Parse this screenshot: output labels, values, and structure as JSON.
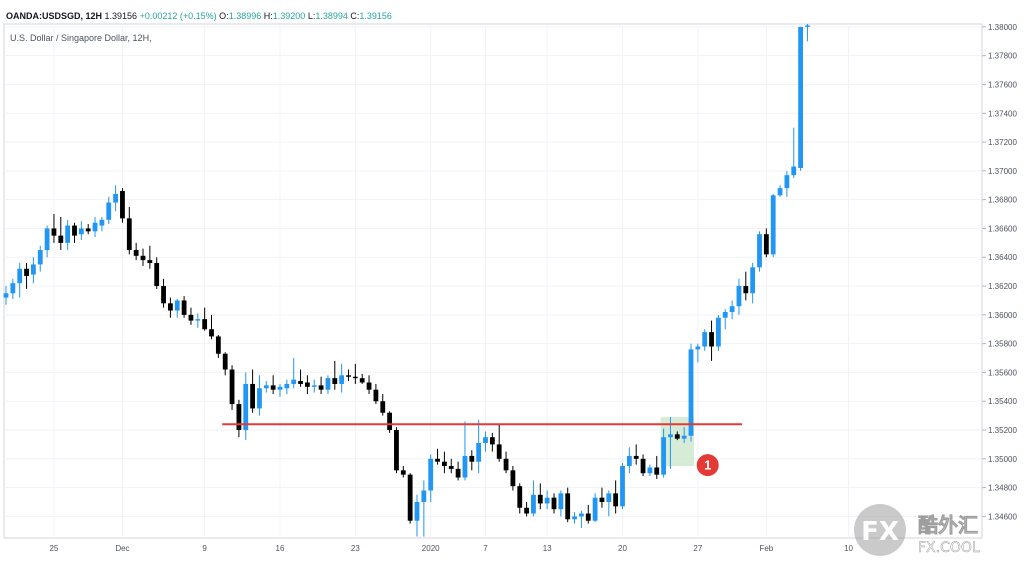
{
  "header": {
    "symbol": "OANDA:USDSGD, 12H",
    "last": "1.39156",
    "change": "+0.00212 (+0.15%)",
    "open_label": "O:",
    "open": "1.38996",
    "high_label": "H:",
    "high": "1.39200",
    "low_label": "L:",
    "low": "1.38994",
    "close_label": "C:",
    "close": "1.39156"
  },
  "instrument_title": "U.S. Dollar / Singapore Dollar, 12H,",
  "marker": {
    "label": "1"
  },
  "watermark": {
    "logo": "FX",
    "brand": "酷外汇",
    "url": "FX.COOL"
  },
  "colors": {
    "up": "#2196f3",
    "down": "#000000",
    "resistance": "#e53935",
    "highlight": "#c8e6c9",
    "marker": "#e53935"
  },
  "chart_data": {
    "type": "candlestick",
    "title": "U.S. Dollar / Singapore Dollar, 12H,",
    "ylim": [
      1.3445,
      1.3802
    ],
    "yticks": [
      "1.38000",
      "1.37800",
      "1.37600",
      "1.37400",
      "1.37200",
      "1.37000",
      "1.36800",
      "1.36600",
      "1.36400",
      "1.36200",
      "1.36000",
      "1.35800",
      "1.35600",
      "1.35400",
      "1.35200",
      "1.35000",
      "1.34800",
      "1.34600"
    ],
    "xticks": [
      {
        "i": 7,
        "label": "25"
      },
      {
        "i": 17,
        "label": "Dec"
      },
      {
        "i": 29,
        "label": "9"
      },
      {
        "i": 40,
        "label": "16"
      },
      {
        "i": 51,
        "label": "23"
      },
      {
        "i": 62,
        "label": "2020"
      },
      {
        "i": 70,
        "label": "7"
      },
      {
        "i": 79,
        "label": "13"
      },
      {
        "i": 90,
        "label": "20"
      },
      {
        "i": 101,
        "label": "27"
      },
      {
        "i": 111,
        "label": "Feb"
      },
      {
        "i": 123,
        "label": "10"
      }
    ],
    "resistance_level": 1.3524,
    "resistance_range": [
      32,
      107
    ],
    "highlight": {
      "i0": 96,
      "i1": 100,
      "low": 1.3495,
      "high": 1.3529
    },
    "marker_index": 102,
    "marker_price": 1.3497,
    "candles": [
      [
        1.3612,
        1.362,
        1.3607,
        1.3615
      ],
      [
        1.3615,
        1.3625,
        1.3611,
        1.3622
      ],
      [
        1.3622,
        1.3636,
        1.3612,
        1.3632
      ],
      [
        1.3632,
        1.3636,
        1.3618,
        1.3627
      ],
      [
        1.3628,
        1.364,
        1.3622,
        1.3635
      ],
      [
        1.3635,
        1.3648,
        1.363,
        1.3645
      ],
      [
        1.3645,
        1.3662,
        1.364,
        1.366
      ],
      [
        1.366,
        1.367,
        1.365,
        1.3655
      ],
      [
        1.3655,
        1.3668,
        1.3645,
        1.365
      ],
      [
        1.365,
        1.3666,
        1.3645,
        1.3662
      ],
      [
        1.3662,
        1.3664,
        1.365,
        1.3655
      ],
      [
        1.3656,
        1.3665,
        1.3652,
        1.366
      ],
      [
        1.366,
        1.3663,
        1.3656,
        1.3658
      ],
      [
        1.3658,
        1.3668,
        1.3654,
        1.3664
      ],
      [
        1.3662,
        1.3668,
        1.3658,
        1.3666
      ],
      [
        1.3666,
        1.3682,
        1.3663,
        1.3678
      ],
      [
        1.3678,
        1.369,
        1.3672,
        1.3684
      ],
      [
        1.3686,
        1.3688,
        1.3664,
        1.3667
      ],
      [
        1.3667,
        1.3675,
        1.3642,
        1.3645
      ],
      [
        1.3645,
        1.365,
        1.3638,
        1.3641
      ],
      [
        1.3641,
        1.3646,
        1.3634,
        1.3638
      ],
      [
        1.3638,
        1.3648,
        1.3632,
        1.3636
      ],
      [
        1.3636,
        1.364,
        1.3618,
        1.362
      ],
      [
        1.362,
        1.3625,
        1.3605,
        1.3608
      ],
      [
        1.3608,
        1.3612,
        1.3598,
        1.3603
      ],
      [
        1.3603,
        1.3611,
        1.3598,
        1.361
      ],
      [
        1.361,
        1.3613,
        1.3598,
        1.36
      ],
      [
        1.36,
        1.3605,
        1.3593,
        1.3596
      ],
      [
        1.3596,
        1.3601,
        1.3591,
        1.3597
      ],
      [
        1.3597,
        1.3605,
        1.3589,
        1.359
      ],
      [
        1.359,
        1.36,
        1.3583,
        1.3585
      ],
      [
        1.3585,
        1.3586,
        1.357,
        1.3573
      ],
      [
        1.3573,
        1.3574,
        1.3558,
        1.3562
      ],
      [
        1.3562,
        1.3565,
        1.3534,
        1.3538
      ],
      [
        1.3538,
        1.3541,
        1.3515,
        1.352
      ],
      [
        1.352,
        1.356,
        1.3513,
        1.3552
      ],
      [
        1.3552,
        1.3562,
        1.3532,
        1.3535
      ],
      [
        1.3535,
        1.3558,
        1.353,
        1.3549
      ],
      [
        1.3549,
        1.3554,
        1.3546,
        1.3551
      ],
      [
        1.3551,
        1.3558,
        1.3545,
        1.3548
      ],
      [
        1.3548,
        1.3552,
        1.3543,
        1.355
      ],
      [
        1.3549,
        1.3555,
        1.3545,
        1.3552
      ],
      [
        1.3552,
        1.357,
        1.3549,
        1.3555
      ],
      [
        1.3554,
        1.3562,
        1.355,
        1.3552
      ],
      [
        1.3553,
        1.3558,
        1.3545,
        1.355
      ],
      [
        1.355,
        1.3555,
        1.3546,
        1.3551
      ],
      [
        1.3551,
        1.3557,
        1.3545,
        1.3548
      ],
      [
        1.3548,
        1.3558,
        1.3545,
        1.3556
      ],
      [
        1.3556,
        1.3568,
        1.3548,
        1.3552
      ],
      [
        1.3552,
        1.3566,
        1.3546,
        1.3558
      ],
      [
        1.3558,
        1.3562,
        1.3554,
        1.3557
      ],
      [
        1.3557,
        1.3566,
        1.3552,
        1.3556
      ],
      [
        1.3556,
        1.3559,
        1.3552,
        1.3553
      ],
      [
        1.3553,
        1.3558,
        1.3545,
        1.3548
      ],
      [
        1.3548,
        1.3552,
        1.3538,
        1.354
      ],
      [
        1.354,
        1.3545,
        1.353,
        1.3532
      ],
      [
        1.3532,
        1.3533,
        1.3518,
        1.352
      ],
      [
        1.352,
        1.3522,
        1.349,
        1.3492
      ],
      [
        1.3492,
        1.3495,
        1.3487,
        1.3489
      ],
      [
        1.3489,
        1.349,
        1.3455,
        1.3457
      ],
      [
        1.3457,
        1.3475,
        1.3446,
        1.347
      ],
      [
        1.347,
        1.3485,
        1.3446,
        1.3478
      ],
      [
        1.3478,
        1.3503,
        1.347,
        1.35
      ],
      [
        1.35,
        1.3507,
        1.3496,
        1.3498
      ],
      [
        1.3498,
        1.3505,
        1.349,
        1.3495
      ],
      [
        1.3495,
        1.35,
        1.349,
        1.3493
      ],
      [
        1.3493,
        1.3498,
        1.3485,
        1.3487
      ],
      [
        1.3487,
        1.3526,
        1.3485,
        1.3502
      ],
      [
        1.3502,
        1.3506,
        1.3492,
        1.3498
      ],
      [
        1.3498,
        1.3527,
        1.349,
        1.3511
      ],
      [
        1.3511,
        1.3519,
        1.3505,
        1.3515
      ],
      [
        1.3515,
        1.3518,
        1.3505,
        1.351
      ],
      [
        1.351,
        1.3524,
        1.3498,
        1.35
      ],
      [
        1.35,
        1.3505,
        1.349,
        1.3492
      ],
      [
        1.3492,
        1.3495,
        1.3478,
        1.3481
      ],
      [
        1.3481,
        1.3483,
        1.3462,
        1.3466
      ],
      [
        1.3466,
        1.347,
        1.346,
        1.3462
      ],
      [
        1.3462,
        1.3485,
        1.346,
        1.3475
      ],
      [
        1.3475,
        1.3483,
        1.3465,
        1.3469
      ],
      [
        1.3469,
        1.3478,
        1.3465,
        1.3473
      ],
      [
        1.3473,
        1.3476,
        1.3462,
        1.3465
      ],
      [
        1.3465,
        1.3478,
        1.346,
        1.3476
      ],
      [
        1.3476,
        1.348,
        1.3456,
        1.3458
      ],
      [
        1.3458,
        1.3463,
        1.3455,
        1.346
      ],
      [
        1.346,
        1.3464,
        1.3452,
        1.3462
      ],
      [
        1.3462,
        1.3468,
        1.3455,
        1.3457
      ],
      [
        1.3457,
        1.3476,
        1.3456,
        1.3473
      ],
      [
        1.3473,
        1.348,
        1.3466,
        1.347
      ],
      [
        1.347,
        1.3478,
        1.346,
        1.3476
      ],
      [
        1.3476,
        1.3485,
        1.3462,
        1.3467
      ],
      [
        1.3467,
        1.3497,
        1.3465,
        1.3495
      ],
      [
        1.3495,
        1.3508,
        1.349,
        1.3502
      ],
      [
        1.3502,
        1.351,
        1.3496,
        1.35
      ],
      [
        1.35,
        1.3503,
        1.3488,
        1.349
      ],
      [
        1.349,
        1.3496,
        1.3488,
        1.3494
      ],
      [
        1.3494,
        1.3502,
        1.3486,
        1.3489
      ],
      [
        1.3489,
        1.3521,
        1.3487,
        1.3515
      ],
      [
        1.3515,
        1.3529,
        1.3493,
        1.3517
      ],
      [
        1.3517,
        1.3519,
        1.3513,
        1.3514
      ],
      [
        1.3514,
        1.3522,
        1.3511,
        1.3516
      ],
      [
        1.3516,
        1.358,
        1.3512,
        1.3576
      ],
      [
        1.3576,
        1.358,
        1.3567,
        1.3578
      ],
      [
        1.3578,
        1.359,
        1.3575,
        1.3588
      ],
      [
        1.3588,
        1.3596,
        1.3568,
        1.3578
      ],
      [
        1.3578,
        1.36,
        1.3575,
        1.3598
      ],
      [
        1.3598,
        1.3604,
        1.359,
        1.3602
      ],
      [
        1.3602,
        1.361,
        1.3597,
        1.3606
      ],
      [
        1.3606,
        1.3625,
        1.36,
        1.362
      ],
      [
        1.362,
        1.363,
        1.361,
        1.3615
      ],
      [
        1.3615,
        1.3636,
        1.3608,
        1.3633
      ],
      [
        1.3633,
        1.3658,
        1.363,
        1.3656
      ],
      [
        1.3656,
        1.366,
        1.364,
        1.3642
      ],
      [
        1.3642,
        1.3684,
        1.364,
        1.3683
      ],
      [
        1.3683,
        1.369,
        1.3682,
        1.3688
      ],
      [
        1.3688,
        1.37,
        1.3682,
        1.3697
      ],
      [
        1.3697,
        1.373,
        1.3695,
        1.3703
      ],
      [
        1.3702,
        1.38,
        1.37,
        1.38
      ],
      [
        1.38,
        1.3802,
        1.379,
        1.3801
      ]
    ]
  }
}
